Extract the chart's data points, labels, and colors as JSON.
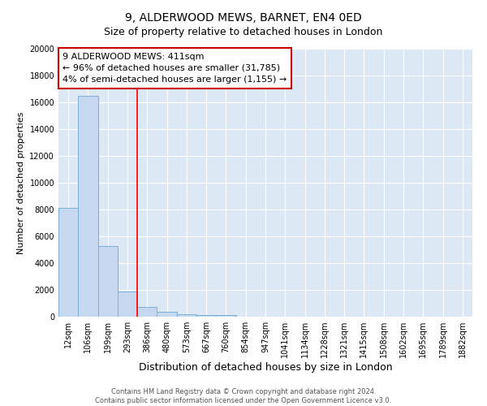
{
  "title": "9, ALDERWOOD MEWS, BARNET, EN4 0ED",
  "subtitle": "Size of property relative to detached houses in London",
  "xlabel": "Distribution of detached houses by size in London",
  "ylabel": "Number of detached properties",
  "categories": [
    "12sqm",
    "106sqm",
    "199sqm",
    "293sqm",
    "386sqm",
    "480sqm",
    "573sqm",
    "667sqm",
    "760sqm",
    "854sqm",
    "947sqm",
    "1041sqm",
    "1134sqm",
    "1228sqm",
    "1321sqm",
    "1415sqm",
    "1508sqm",
    "1602sqm",
    "1695sqm",
    "1789sqm",
    "1882sqm"
  ],
  "values": [
    8100,
    16500,
    5300,
    1850,
    700,
    350,
    200,
    150,
    100,
    0,
    0,
    0,
    0,
    0,
    0,
    0,
    0,
    0,
    0,
    0,
    0
  ],
  "bar_color": "#c5d8f0",
  "bar_edge_color": "#7bafd4",
  "red_line_index": 3.5,
  "annotation_line1": "9 ALDERWOOD MEWS: 411sqm",
  "annotation_line2": "← 96% of detached houses are smaller (31,785)",
  "annotation_line3": "4% of semi-detached houses are larger (1,155) →",
  "annotation_box_facecolor": "#ffffff",
  "annotation_box_edgecolor": "#cc0000",
  "ylim_max": 20000,
  "yticks": [
    0,
    2000,
    4000,
    6000,
    8000,
    10000,
    12000,
    14000,
    16000,
    18000,
    20000
  ],
  "background_color": "#dde8f5",
  "grid_color": "#ffffff",
  "footer_line1": "Contains HM Land Registry data © Crown copyright and database right 2024.",
  "footer_line2": "Contains public sector information licensed under the Open Government Licence v3.0.",
  "title_fontsize": 10,
  "subtitle_fontsize": 9,
  "tick_fontsize": 7,
  "ylabel_fontsize": 8,
  "xlabel_fontsize": 9,
  "annotation_fontsize": 8,
  "footer_fontsize": 6
}
